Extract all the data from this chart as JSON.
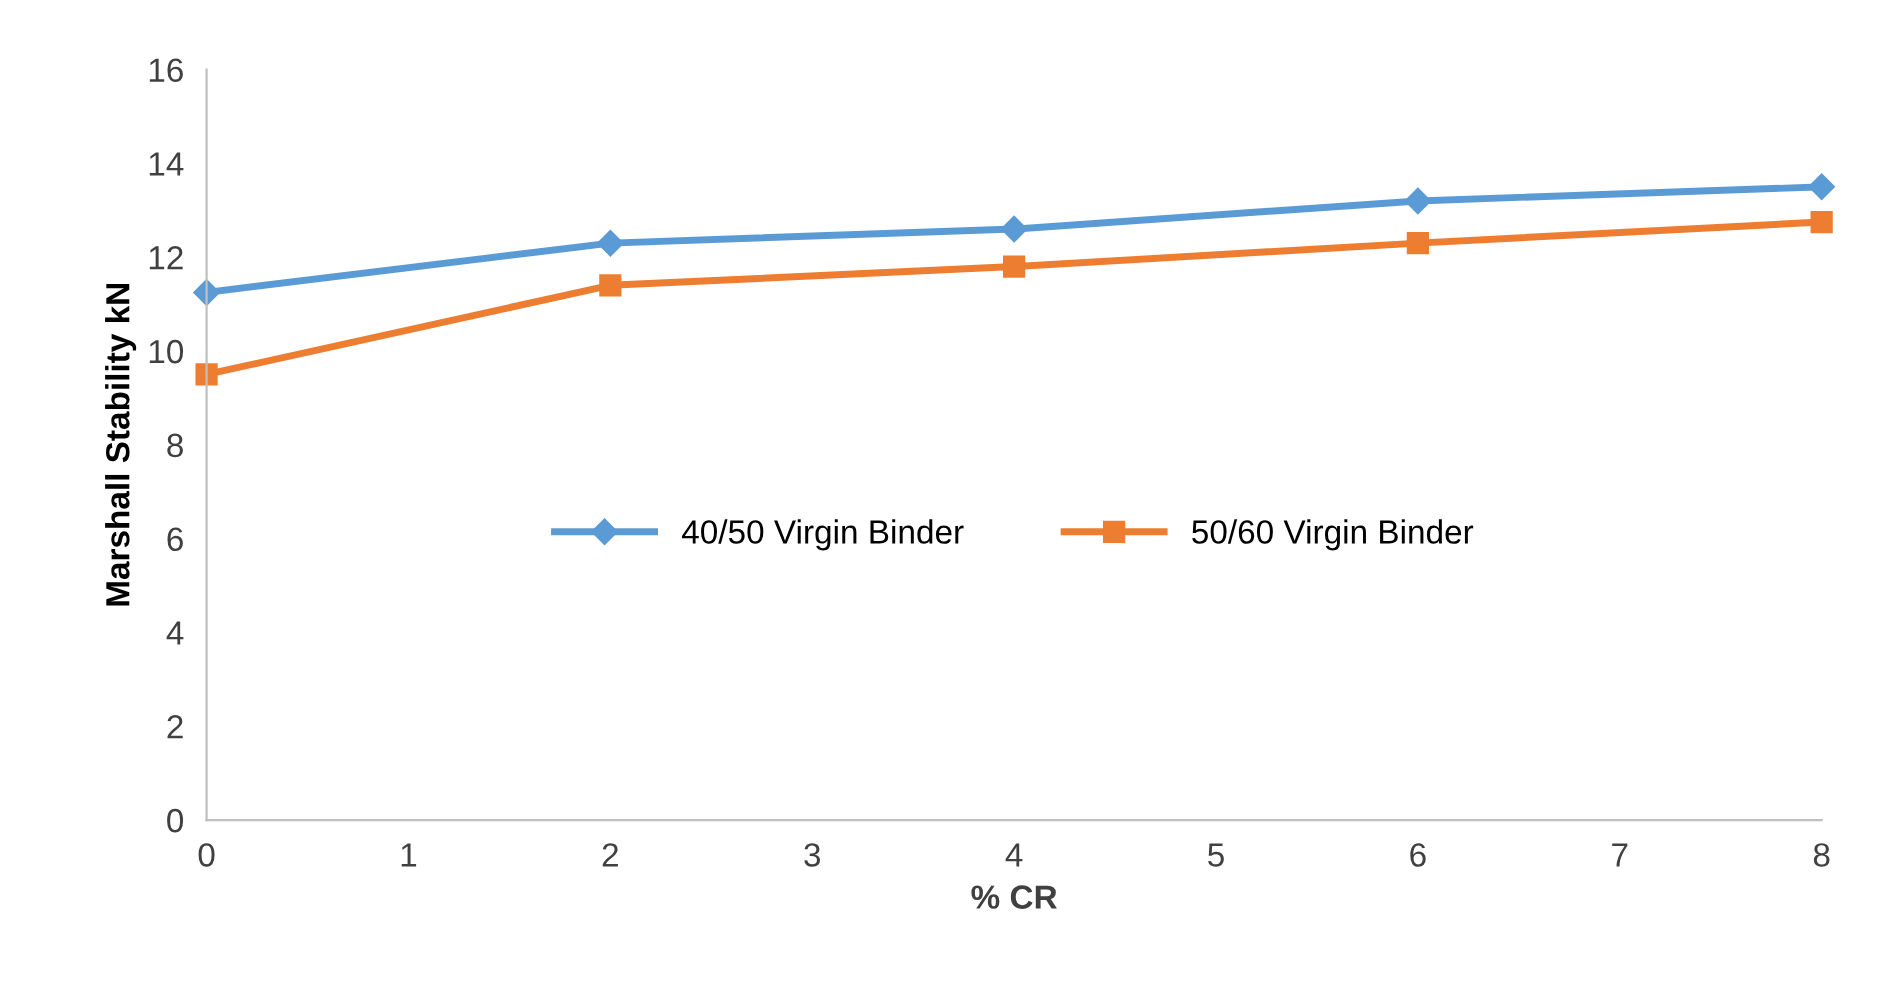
{
  "chart_data": {
    "type": "line",
    "xlabel": "% CR",
    "ylabel": "Marshall Stability kN",
    "x": [
      0,
      2,
      4,
      6,
      8
    ],
    "series": [
      {
        "name": "40/50 Virgin Binder",
        "color": "#5b9bd5",
        "values": [
          11.25,
          12.3,
          12.6,
          13.2,
          13.5
        ],
        "marker": "diamond"
      },
      {
        "name": "50/60 Virgin Binder",
        "color": "#ed7d31",
        "values": [
          9.5,
          11.4,
          11.8,
          12.3,
          12.75
        ],
        "marker": "square"
      }
    ],
    "xlim": [
      0,
      8
    ],
    "xticks": [
      0,
      1,
      2,
      3,
      4,
      5,
      6,
      7,
      8
    ],
    "ylim": [
      0,
      16
    ],
    "yticks": [
      0,
      2,
      4,
      6,
      8,
      10,
      12,
      14,
      16
    ],
    "grid": false,
    "legend": "center",
    "line_style": "solid"
  }
}
